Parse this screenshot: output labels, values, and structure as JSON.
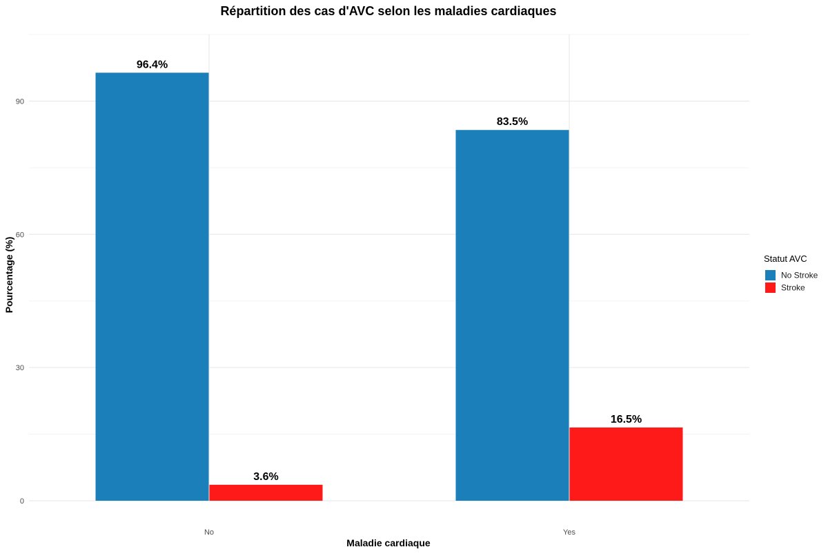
{
  "chart_data": {
    "type": "bar",
    "title": "Répartition des cas d'AVC selon les maladies cardiaques",
    "xlabel": "Maladie cardiaque",
    "ylabel": "Pourcentage (%)",
    "categories": [
      "No",
      "Yes"
    ],
    "series": [
      {
        "name": "No Stroke",
        "color": "#1b80ba",
        "values": [
          96.4,
          83.5
        ],
        "labels": [
          "96.4%",
          "83.5%"
        ]
      },
      {
        "name": "Stroke",
        "color": "#ff1a1a",
        "values": [
          3.6,
          16.5
        ],
        "labels": [
          "3.6%",
          "16.5%"
        ]
      }
    ],
    "ylim": [
      0,
      105
    ],
    "yticks": [
      0,
      30,
      60,
      90
    ],
    "yticks_text": [
      "0",
      "30",
      "60",
      "90"
    ],
    "grid": true,
    "legend": {
      "title": "Statut AVC",
      "position": "right"
    }
  }
}
